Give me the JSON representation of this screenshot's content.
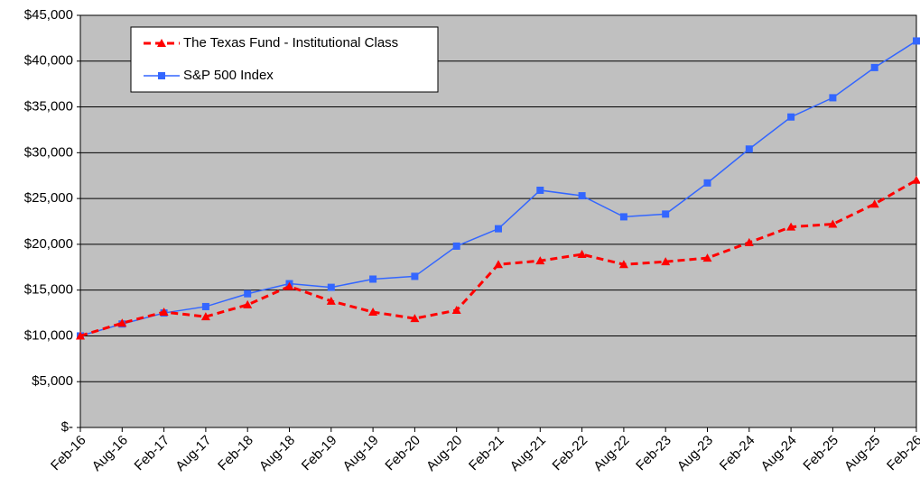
{
  "chart_data": {
    "type": "line",
    "categories": [
      "Feb-16",
      "Aug-16",
      "Feb-17",
      "Aug-17",
      "Feb-18",
      "Aug-18",
      "Feb-19",
      "Aug-19",
      "Feb-20",
      "Aug-20",
      "Feb-21",
      "Aug-21",
      "Feb-22",
      "Aug-22",
      "Feb-23",
      "Aug-23",
      "Feb-24",
      "Aug-24",
      "Feb-25",
      "Aug-25",
      "Feb-26"
    ],
    "series": [
      {
        "name": "The Texas Fund - Institutional Class",
        "color": "#ff0000",
        "dashed": true,
        "marker": "triangle",
        "values": [
          10000,
          11400,
          12600,
          12100,
          13400,
          15400,
          13800,
          12600,
          11900,
          12800,
          17800,
          18200,
          18900,
          17800,
          18100,
          18500,
          20200,
          21900,
          22200,
          24400,
          27000
        ]
      },
      {
        "name": "S&P 500 Index",
        "color": "#3366ff",
        "dashed": false,
        "marker": "square",
        "values": [
          10000,
          11300,
          12500,
          13200,
          14600,
          15700,
          15300,
          16200,
          16500,
          19800,
          21700,
          25900,
          25300,
          23000,
          23300,
          26700,
          30400,
          33900,
          36000,
          39300,
          42200
        ]
      }
    ],
    "ylim": [
      0,
      45000
    ],
    "yticks": [
      {
        "value": 0,
        "label": "$-"
      },
      {
        "value": 5000,
        "label": "$5,000"
      },
      {
        "value": 10000,
        "label": "$10,000"
      },
      {
        "value": 15000,
        "label": "$15,000"
      },
      {
        "value": 20000,
        "label": "$20,000"
      },
      {
        "value": 25000,
        "label": "$25,000"
      },
      {
        "value": 30000,
        "label": "$30,000"
      },
      {
        "value": 35000,
        "label": "$35,000"
      },
      {
        "value": 40000,
        "label": "$40,000"
      },
      {
        "value": 45000,
        "label": "$45,000"
      }
    ],
    "grid": true,
    "legend": "upper left",
    "background": "#c0c0c0"
  }
}
